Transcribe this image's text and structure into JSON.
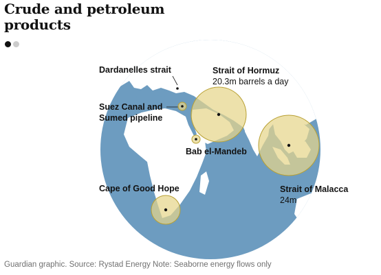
{
  "title_lines": [
    "Crude and petroleum",
    "products"
  ],
  "pager": {
    "active_color": "#121212",
    "inactive_color": "#cccccc"
  },
  "colors": {
    "ocean": "#6d9cc0",
    "land": "#ffffff",
    "circle_fill": "#e6d58a",
    "circle_stroke": "#b8a033",
    "marker": "#121212"
  },
  "chokepoints": {
    "dardanelles": {
      "name": "Dardanelles strait"
    },
    "hormuz": {
      "name": "Strait of Hormuz",
      "value": "20.3m barrels a day"
    },
    "suez": {
      "name_lines": [
        "Suez Canal and",
        "Sumed pipeline"
      ]
    },
    "bab": {
      "name": "Bab el-Mandeb"
    },
    "good_hope": {
      "name": "Cape of Good Hope"
    },
    "malacca": {
      "name": "Strait of Malacca",
      "value": "24m"
    }
  },
  "source": "Guardian graphic. Source: Rystad Energy Note: Seaborne energy flows only"
}
